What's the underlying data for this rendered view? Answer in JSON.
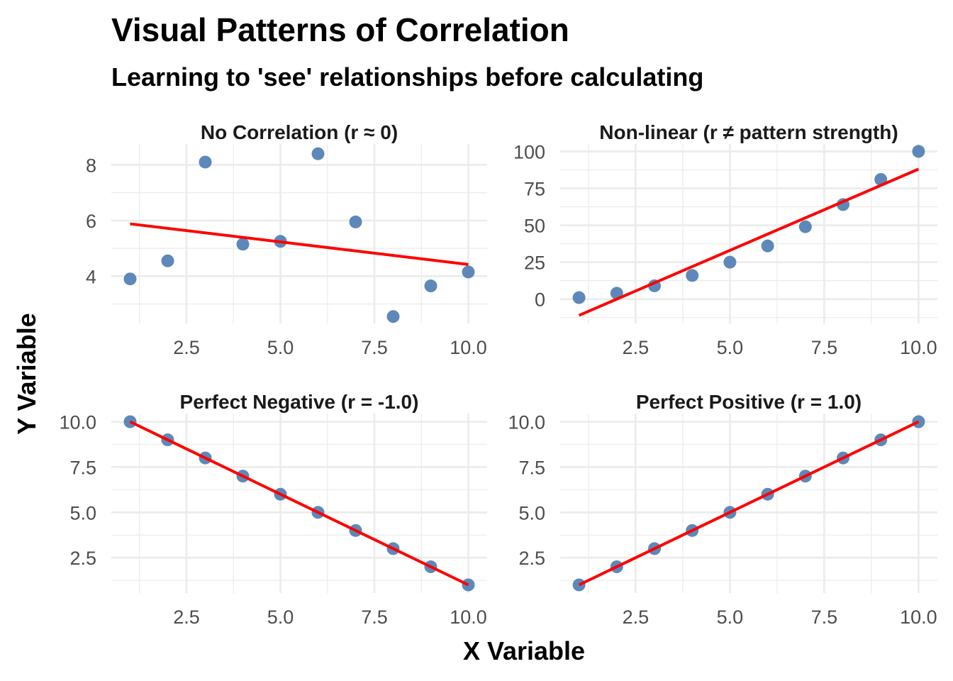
{
  "title": "Visual Patterns of Correlation",
  "subtitle": "Learning to 'see' relationships before calculating",
  "xlabel": "X Variable",
  "ylabel": "Y Variable",
  "colors": {
    "point": "#4f7eb3",
    "line": "#ff0000",
    "grid": "#ebebeb"
  },
  "chart_data": [
    {
      "type": "scatter",
      "title": "No Correlation (r ≈ 0)",
      "x": [
        1,
        2,
        3,
        4,
        5,
        6,
        7,
        8,
        9,
        10
      ],
      "y": [
        3.9,
        4.55,
        8.1,
        5.15,
        5.25,
        8.4,
        5.95,
        2.55,
        3.65,
        4.15
      ],
      "fit_line": {
        "x": [
          1,
          10
        ],
        "y": [
          5.88,
          4.42
        ]
      },
      "xlim": [
        0.5,
        10.5
      ],
      "ylim": [
        2.3,
        8.75
      ],
      "xticks": [
        2.5,
        5.0,
        7.5,
        10.0
      ],
      "xtick_labels": [
        "2.5",
        "5.0",
        "7.5",
        "10.0"
      ],
      "yticks": [
        4,
        6,
        8
      ],
      "ytick_labels": [
        "4",
        "6",
        "8"
      ]
    },
    {
      "type": "scatter",
      "title": "Non-linear (r ≠ pattern strength)",
      "x": [
        1,
        2,
        3,
        4,
        5,
        6,
        7,
        8,
        9,
        10
      ],
      "y": [
        1,
        4,
        9,
        16,
        25,
        36,
        49,
        64,
        81,
        100
      ],
      "fit_line": {
        "x": [
          1,
          10
        ],
        "y": [
          -11,
          88
        ]
      },
      "xlim": [
        0.5,
        10.5
      ],
      "ylim": [
        -16.5,
        105
      ],
      "xticks": [
        2.5,
        5.0,
        7.5,
        10.0
      ],
      "xtick_labels": [
        "2.5",
        "5.0",
        "7.5",
        "10.0"
      ],
      "yticks": [
        0,
        25,
        50,
        75,
        100
      ],
      "ytick_labels": [
        "0",
        "25",
        "50",
        "75",
        "100"
      ]
    },
    {
      "type": "scatter",
      "title": "Perfect Negative (r = -1.0)",
      "x": [
        1,
        2,
        3,
        4,
        5,
        6,
        7,
        8,
        9,
        10
      ],
      "y": [
        10,
        9,
        8,
        7,
        6,
        5,
        4,
        3,
        2,
        1
      ],
      "fit_line": {
        "x": [
          1,
          10
        ],
        "y": [
          10,
          1
        ]
      },
      "xlim": [
        0.5,
        10.5
      ],
      "ylim": [
        0.55,
        10.45
      ],
      "xticks": [
        2.5,
        5.0,
        7.5,
        10.0
      ],
      "xtick_labels": [
        "2.5",
        "5.0",
        "7.5",
        "10.0"
      ],
      "yticks": [
        2.5,
        5.0,
        7.5,
        10.0
      ],
      "ytick_labels": [
        "2.5",
        "5.0",
        "7.5",
        "10.0"
      ]
    },
    {
      "type": "scatter",
      "title": "Perfect Positive (r = 1.0)",
      "x": [
        1,
        2,
        3,
        4,
        5,
        6,
        7,
        8,
        9,
        10
      ],
      "y": [
        1,
        2,
        3,
        4,
        5,
        6,
        7,
        8,
        9,
        10
      ],
      "fit_line": {
        "x": [
          1,
          10
        ],
        "y": [
          1,
          10
        ]
      },
      "xlim": [
        0.5,
        10.5
      ],
      "ylim": [
        0.55,
        10.45
      ],
      "xticks": [
        2.5,
        5.0,
        7.5,
        10.0
      ],
      "xtick_labels": [
        "2.5",
        "5.0",
        "7.5",
        "10.0"
      ],
      "yticks": [
        2.5,
        5.0,
        7.5,
        10.0
      ],
      "ytick_labels": [
        "2.5",
        "5.0",
        "7.5",
        "10.0"
      ]
    }
  ]
}
